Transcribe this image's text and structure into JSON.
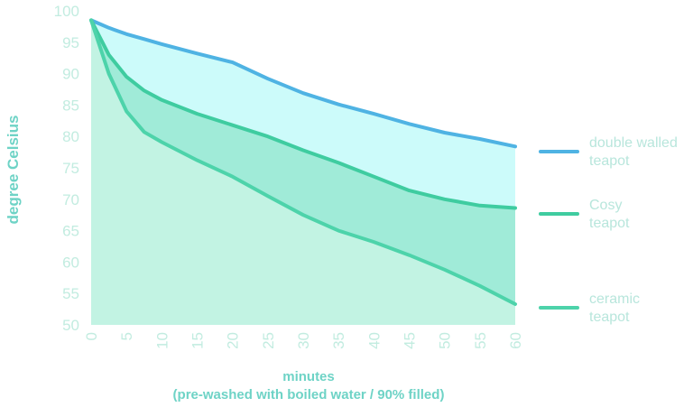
{
  "chart_data": {
    "type": "area",
    "title": "",
    "xlabel": "minutes",
    "xlabel_sub": "(pre-washed with boiled water / 90% filled)",
    "ylabel": "degree Celsius",
    "xlim": [
      0,
      60
    ],
    "ylim": [
      50,
      100
    ],
    "x_ticks": [
      0,
      5,
      10,
      15,
      20,
      25,
      30,
      35,
      40,
      45,
      50,
      55,
      60
    ],
    "y_ticks": [
      50,
      55,
      60,
      65,
      70,
      75,
      80,
      85,
      90,
      95,
      100
    ],
    "grid": false,
    "legend_position": "right",
    "x": [
      0,
      2.5,
      5,
      7.5,
      10,
      15,
      20,
      25,
      30,
      35,
      40,
      45,
      50,
      55,
      60
    ],
    "series": [
      {
        "name": "double walled teapot",
        "color": "#4fb3e3",
        "fill": "#ccfbfa",
        "values": [
          98.5,
          97.3,
          96.3,
          95.5,
          94.7,
          93.2,
          91.8,
          89.2,
          86.9,
          85.1,
          83.6,
          82.0,
          80.6,
          79.6,
          78.4
        ]
      },
      {
        "name": "Cosy teapot",
        "color": "#3fcca0",
        "fill": "#a0ebd8",
        "values": [
          98.5,
          93.0,
          89.5,
          87.3,
          85.8,
          83.6,
          81.8,
          80.0,
          77.8,
          75.8,
          73.6,
          71.4,
          70.0,
          69.0,
          68.6
        ]
      },
      {
        "name": "ceramic teapot",
        "color": "#4dd3aa",
        "fill": "#c2f3e3",
        "values": [
          98.5,
          90.0,
          84.0,
          80.7,
          79.1,
          76.2,
          73.6,
          70.5,
          67.5,
          65.0,
          63.2,
          61.1,
          58.8,
          56.2,
          53.3
        ]
      }
    ]
  }
}
